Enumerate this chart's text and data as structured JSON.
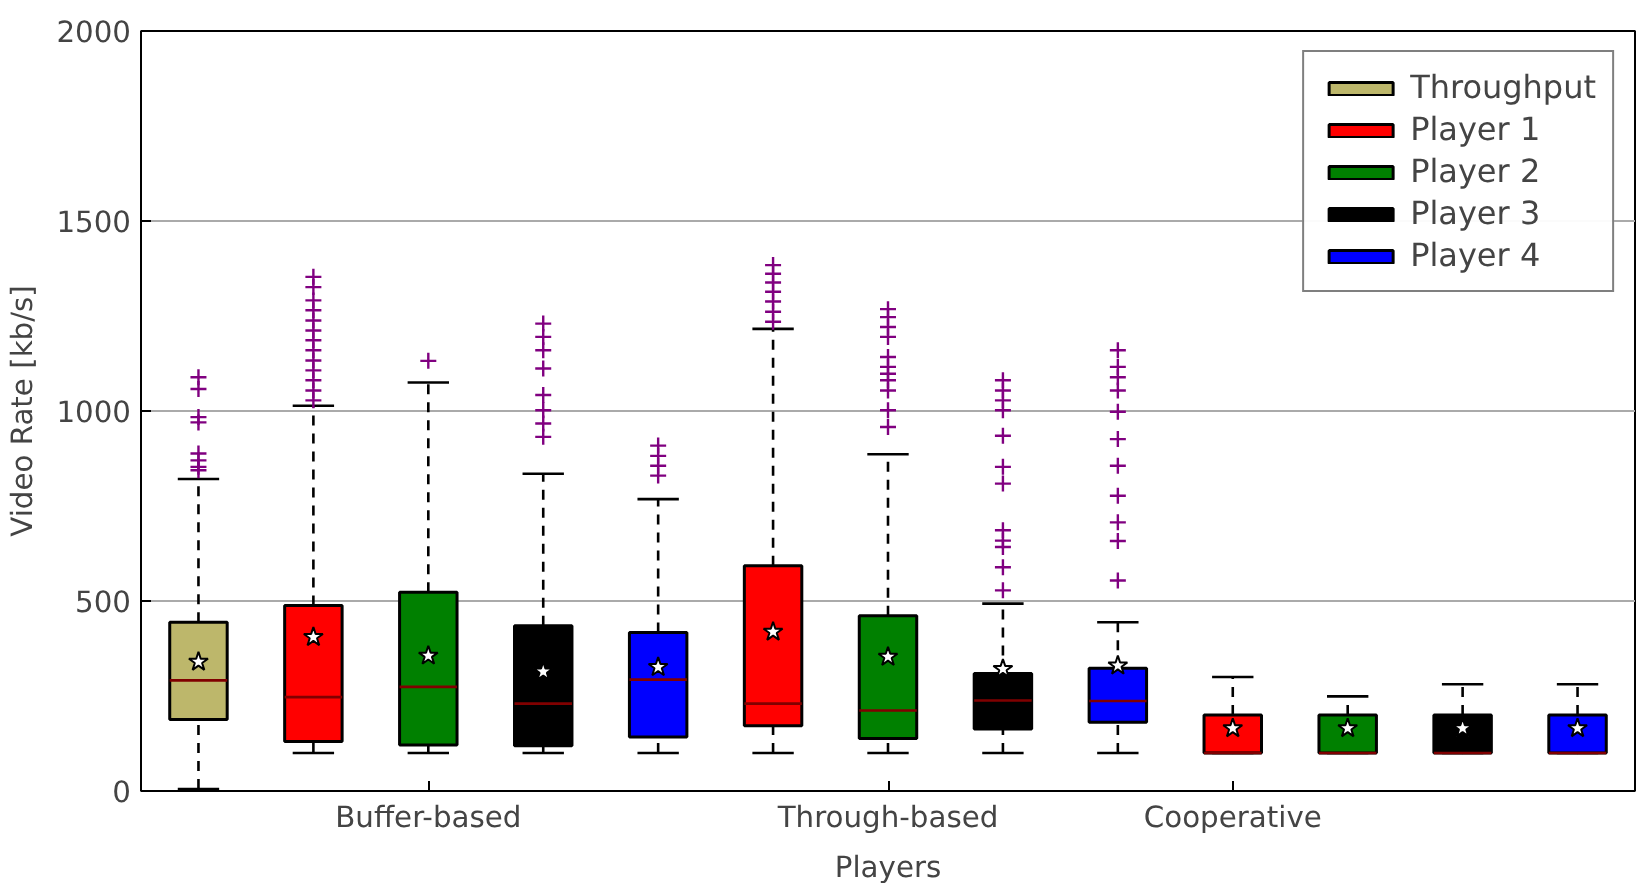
{
  "chart_data": {
    "type": "box",
    "xlabel": "Players",
    "ylabel": "Video Rate [kb/s]",
    "categories": [
      null,
      null,
      "Buffer-based",
      null,
      null,
      null,
      "Through-based",
      null,
      null,
      "Cooperative",
      null,
      null,
      null
    ],
    "ylim": [
      0,
      2000
    ],
    "yticks": [
      0,
      500,
      1000,
      1500,
      2000
    ],
    "grid": "y",
    "legend": "top right",
    "series": [
      {
        "name": "Throughput",
        "color": "#bdb76b",
        "boxes": [
          {
            "low": 5,
            "q1": 188,
            "median": 291,
            "q3": 444,
            "high": 821,
            "mean": 340,
            "outliers": [
              1089,
              1058,
              984,
              970,
              888,
              870,
              853,
              844
            ]
          },
          null,
          null,
          null,
          null,
          null,
          null,
          null,
          null,
          null,
          null,
          null,
          null
        ]
      },
      {
        "name": "Player 1",
        "color": "#ff0000",
        "boxes": [
          null,
          {
            "low": 100,
            "q1": 130,
            "median": 247,
            "q3": 488,
            "high": 1014,
            "mean": 405,
            "outliers": [
              1353,
              1326,
              1291,
              1265,
              1238,
              1212,
              1186,
              1160,
              1133,
              1107,
              1081,
              1054,
              1028
            ]
          },
          null,
          null,
          null,
          {
            "low": 100,
            "q1": 172,
            "median": 230,
            "q3": 593,
            "high": 1216,
            "mean": 419,
            "outliers": [
              1384,
              1361,
              1338,
              1314,
              1288,
              1261,
              1235
            ]
          },
          null,
          null,
          null,
          {
            "low": 100,
            "q1": 100,
            "median": 100,
            "q3": 200,
            "high": 300,
            "mean": 165
          },
          null,
          null,
          null
        ]
      },
      {
        "name": "Player 2",
        "color": "#008000",
        "boxes": [
          null,
          null,
          {
            "low": 100,
            "q1": 121,
            "median": 274,
            "q3": 523,
            "high": 1075,
            "mean": 356,
            "outliers": [
              1132
            ]
          },
          null,
          null,
          null,
          {
            "low": 100,
            "q1": 138,
            "median": 212,
            "q3": 461,
            "high": 886,
            "mean": 353,
            "outliers": [
              1268,
              1247,
              1221,
              1195,
              1142,
              1116,
              1098,
              1081,
              1054,
              1002,
              958
            ]
          },
          null,
          null,
          null,
          {
            "low": 100,
            "q1": 100,
            "median": 100,
            "q3": 200,
            "high": 249,
            "mean": 165
          },
          null,
          null
        ]
      },
      {
        "name": "Player 3",
        "color": "#000000",
        "boxes": [
          null,
          null,
          null,
          {
            "low": 100,
            "q1": 119,
            "median": 230,
            "q3": 435,
            "high": 835,
            "mean": 314,
            "outliers": [
              1230,
              1195,
              1160,
              1112,
              1042,
              1002,
              967,
              932
            ]
          },
          null,
          null,
          null,
          {
            "low": 100,
            "q1": 163,
            "median": 238,
            "q3": 309,
            "high": 493,
            "mean": 321,
            "outliers": [
              1081,
              1054,
              1028,
              1002,
              935,
              853,
              809,
              686,
              659,
              642,
              589,
              528
            ]
          },
          null,
          null,
          null,
          {
            "low": 100,
            "q1": 100,
            "median": 100,
            "q3": 200,
            "high": 281,
            "mean": 165
          },
          null
        ]
      },
      {
        "name": "Player 4",
        "color": "#0000ff",
        "boxes": [
          null,
          null,
          null,
          null,
          {
            "low": 100,
            "q1": 142,
            "median": 293,
            "q3": 417,
            "high": 768,
            "mean": 326,
            "outliers": [
              909,
              882,
              856,
              830
            ]
          },
          null,
          null,
          null,
          {
            "low": 100,
            "q1": 181,
            "median": 237,
            "q3": 323,
            "high": 444,
            "mean": 330,
            "outliers": [
              1160,
              1116,
              1089,
              1054,
              998,
              926,
              856,
              777,
              707,
              658,
              554
            ]
          },
          null,
          null,
          null,
          {
            "low": 100,
            "q1": 100,
            "median": 100,
            "q3": 200,
            "high": 281,
            "mean": 165
          }
        ]
      }
    ]
  }
}
